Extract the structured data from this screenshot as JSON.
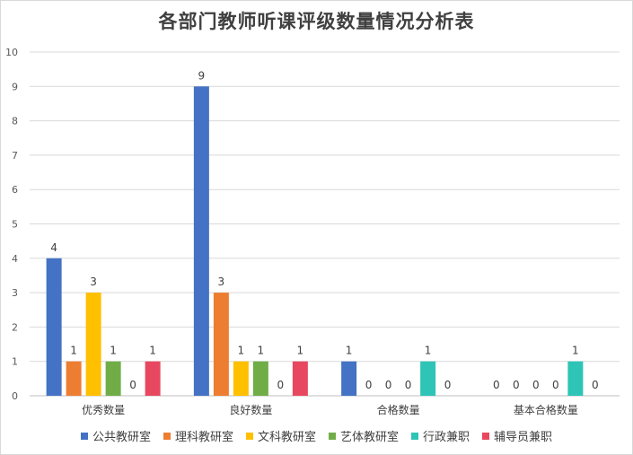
{
  "chart_data": {
    "type": "bar",
    "title": "各部门教师听课评级数量情况分析表",
    "categories": [
      "优秀数量",
      "良好数量",
      "合格数量",
      "基本合格数量"
    ],
    "series": [
      {
        "name": "公共教研室",
        "color": "#4472C4",
        "values": [
          4,
          9,
          1,
          0
        ]
      },
      {
        "name": "理科教研室",
        "color": "#ED7D31",
        "values": [
          1,
          3,
          0,
          0
        ]
      },
      {
        "name": "文科教研室",
        "color": "#FFC000",
        "values": [
          3,
          1,
          0,
          0
        ]
      },
      {
        "name": "艺体教研室",
        "color": "#70AD47",
        "values": [
          1,
          1,
          0,
          0
        ]
      },
      {
        "name": "行政兼职",
        "color": "#2EC4B6",
        "values": [
          0,
          0,
          1,
          1
        ]
      },
      {
        "name": "辅导员兼职",
        "color": "#E8485F",
        "values": [
          1,
          1,
          0,
          0
        ]
      }
    ],
    "ylim": [
      0,
      10
    ],
    "yticks": [
      "0",
      "1",
      "2",
      "3",
      "4",
      "5",
      "6",
      "7",
      "8",
      "9",
      "10"
    ],
    "grid": true,
    "legend_position": "bottom"
  }
}
